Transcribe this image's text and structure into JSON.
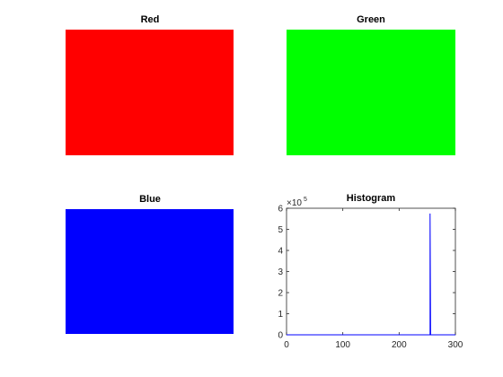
{
  "panels": [
    {
      "title": "Red",
      "color": "#ff0000"
    },
    {
      "title": "Green",
      "color": "#00ff00"
    },
    {
      "title": "Blue",
      "color": "#0000ff"
    }
  ],
  "chart_data": {
    "type": "line",
    "title": "Histogram",
    "xlabel": "",
    "ylabel": "",
    "xlim": [
      0,
      300
    ],
    "ylim": [
      0,
      600000
    ],
    "x_ticks": [
      0,
      100,
      200,
      300
    ],
    "x_tick_labels": [
      "0",
      "100",
      "200",
      "300"
    ],
    "y_ticks": [
      0,
      100000,
      200000,
      300000,
      400000,
      500000,
      600000
    ],
    "y_tick_labels": [
      "0",
      "1",
      "2",
      "3",
      "4",
      "5",
      "6"
    ],
    "y_exponent_base": "×10",
    "y_exponent_power": "5",
    "grid": false,
    "line_color": "#0000ff",
    "series": [
      {
        "x": [
          0,
          254,
          255,
          255,
          256,
          300
        ],
        "y": [
          0,
          0,
          0,
          575000,
          0,
          0
        ]
      }
    ]
  }
}
